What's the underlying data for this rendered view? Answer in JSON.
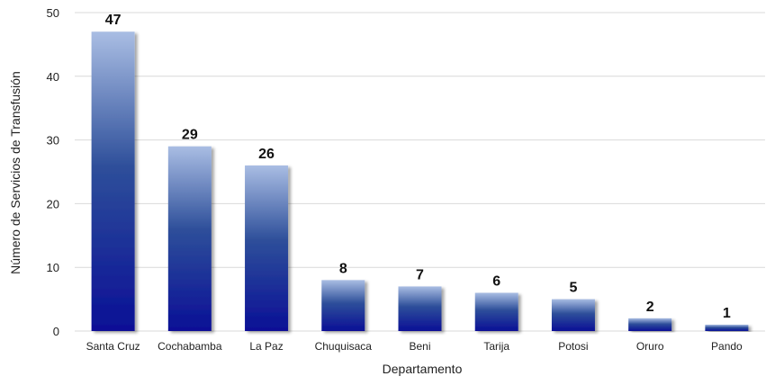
{
  "chart_data": {
    "type": "bar",
    "title": "",
    "xlabel": "Departamento",
    "ylabel": "Número de Servicios de Transfusión",
    "categories": [
      "Santa Cruz",
      "Cochabamba",
      "La Paz",
      "Chuquisaca",
      "Beni",
      "Tarija",
      "Potosi",
      "Oruro",
      "Pando"
    ],
    "values": [
      47,
      29,
      26,
      8,
      7,
      6,
      5,
      2,
      1
    ],
    "ylim": [
      0,
      50
    ],
    "yticks": [
      0,
      10,
      20,
      30,
      40,
      50
    ],
    "grid": true,
    "legend": "none",
    "colors": {
      "bar_top": "#a9bde3",
      "bar_mid": "#2e4f9a",
      "bar_bottom": "#0a0f96",
      "grid": "#d9d9d9"
    }
  }
}
